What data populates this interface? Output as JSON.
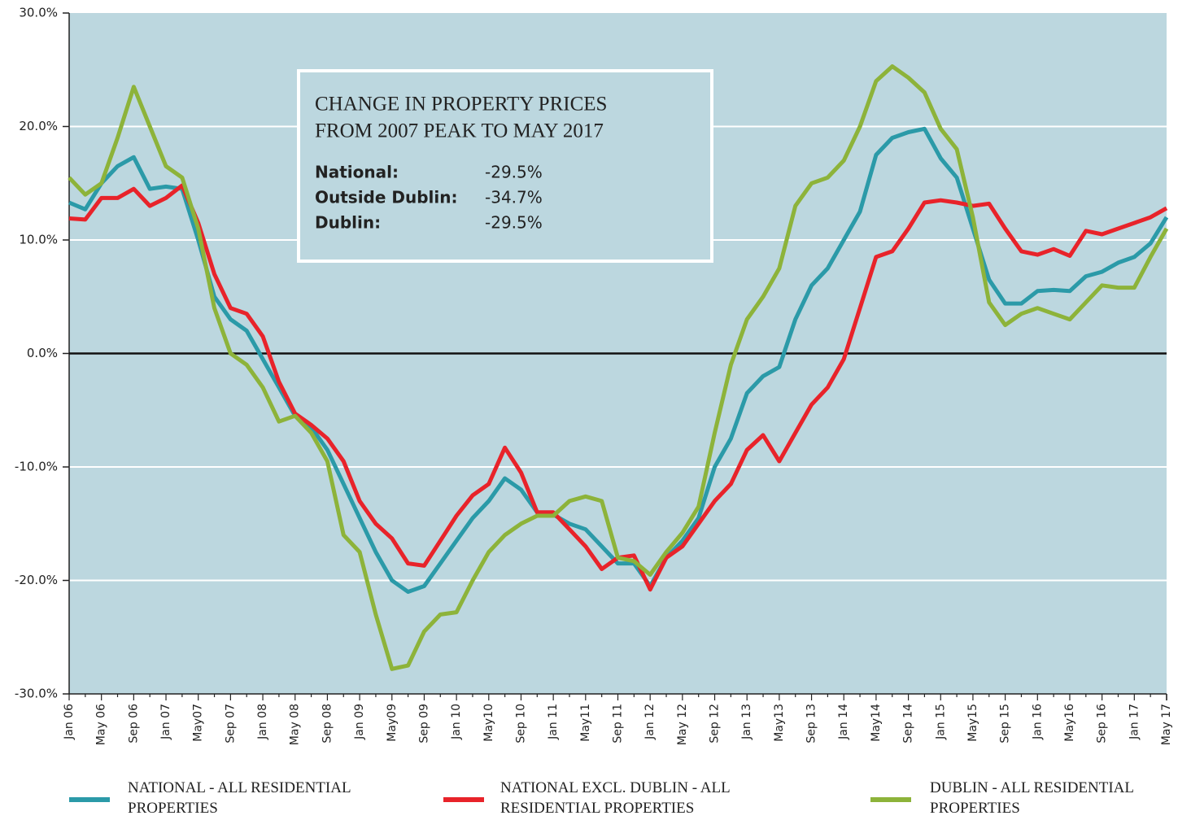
{
  "chart_data": {
    "type": "line",
    "categories": [
      "Jan 06",
      null,
      "May 06",
      null,
      "Sep 06",
      null,
      "Jan 07",
      null,
      "May07",
      null,
      "Sep 07",
      null,
      "Jan 08",
      null,
      "May 08",
      null,
      "Sep 08",
      null,
      "Jan 09",
      null,
      "May09",
      null,
      "Sep 09",
      null,
      "Jan 10",
      null,
      "May10",
      null,
      "Sep 10",
      null,
      "Jan 11",
      null,
      "May11",
      null,
      "Sep 11",
      null,
      "Jan 12",
      null,
      "May 12",
      null,
      "Sep 12",
      null,
      "Jan 13",
      null,
      "May13",
      null,
      "Sep 13",
      null,
      "Jan 14",
      null,
      "May14",
      null,
      "Sep 14",
      null,
      "Jan 15",
      null,
      "May15",
      null,
      "Sep 15",
      null,
      "Jan 16",
      null,
      "May16",
      null,
      "Sep 16",
      null,
      "Jan 17",
      null,
      "May 17"
    ],
    "series": [
      {
        "name": "NATIONAL - ALL RESIDENTIAL PROPERTIES",
        "color": "#2b9aa8",
        "values": [
          13.3,
          12.7,
          15,
          16.5,
          17.3,
          14.5,
          14.7,
          14.5,
          10,
          5,
          3,
          2,
          -0.5,
          -3,
          -5.5,
          -6.5,
          -8.5,
          -11.5,
          -14.5,
          -17.5,
          -20,
          -21,
          -20.5,
          -18.5,
          -16.5,
          -14.5,
          -13,
          -11,
          -12,
          -14,
          -14.2,
          -15,
          -15.5,
          -17,
          -18.5,
          -18.5,
          -20.5,
          -18,
          -16.5,
          -14.5,
          -10,
          -7.5,
          -3.5,
          -2,
          -1.2,
          3,
          6,
          7.5,
          10,
          12.5,
          17.5,
          19,
          19.5,
          19.8,
          17.2,
          15.5,
          11,
          6.5,
          4.4,
          4.4,
          5.5,
          5.6,
          5.5,
          6.8,
          7.2,
          8,
          8.5,
          9.7,
          12
        ]
      },
      {
        "name": "NATIONAL EXCL. DUBLIN - ALL RESIDENTIAL PROPERTIES",
        "color": "#e8232a",
        "values": [
          11.9,
          11.8,
          13.7,
          13.7,
          14.5,
          13,
          13.7,
          14.8,
          11.5,
          7,
          4,
          3.5,
          1.5,
          -2.5,
          -5.3,
          -6.3,
          -7.5,
          -9.5,
          -13,
          -15,
          -16.3,
          -18.5,
          -18.7,
          -16.5,
          -14.3,
          -12.5,
          -11.5,
          -8.3,
          -10.5,
          -14,
          -14,
          -15.5,
          -17,
          -19,
          -18,
          -17.8,
          -20.8,
          -18,
          -17,
          -15,
          -13,
          -11.5,
          -8.5,
          -7.2,
          -9.5,
          -7,
          -4.5,
          -3,
          -0.5,
          4,
          8.5,
          9,
          11,
          13.3,
          13.5,
          13.3,
          13,
          13.2,
          11,
          9,
          8.7,
          9.2,
          8.6,
          10.8,
          10.5,
          11,
          11.5,
          12,
          12.8
        ]
      },
      {
        "name": "DUBLIN - ALL RESIDENTIAL PROPERTIES",
        "color": "#8db33a",
        "values": [
          15.5,
          14,
          15,
          19,
          23.5,
          20,
          16.5,
          15.5,
          11,
          4,
          0,
          -1,
          -3,
          -6,
          -5.5,
          -7,
          -9.5,
          -16,
          -17.5,
          -23,
          -27.8,
          -27.5,
          -24.5,
          -23,
          -22.8,
          -20,
          -17.5,
          -16,
          -15,
          -14.3,
          -14.3,
          -13,
          -12.6,
          -13,
          -18,
          -18.3,
          -19.5,
          -17.5,
          -15.8,
          -13.5,
          -7,
          -1,
          3,
          5,
          7.5,
          13,
          15,
          15.5,
          17,
          20,
          24,
          25.3,
          24.3,
          23,
          19.8,
          18,
          12,
          4.5,
          2.5,
          3.5,
          4,
          3.5,
          3,
          4.5,
          6,
          5.8,
          5.8,
          8.5,
          11
        ]
      }
    ],
    "ylim": [
      -30,
      30
    ],
    "yticks": [
      {
        "value": -30,
        "label": "-30.0%"
      },
      {
        "value": -20,
        "label": "-20.0%"
      },
      {
        "value": -10,
        "label": "-10.0%"
      },
      {
        "value": 0,
        "label": "0.0%"
      },
      {
        "value": 10,
        "label": "10.0%"
      },
      {
        "value": 20,
        "label": "20.0%"
      },
      {
        "value": 30,
        "label": "30.0%"
      }
    ],
    "grid": true,
    "background": "#bcd7df",
    "annotation": {
      "title": [
        "CHANGE IN PROPERTY PRICES",
        "FROM 2007 PEAK TO MAY 2017"
      ],
      "rows": [
        [
          "National:",
          "-29.5%"
        ],
        [
          "Outside Dublin:",
          "-34.7%"
        ],
        [
          "Dublin:",
          "-29.5%"
        ]
      ]
    }
  }
}
